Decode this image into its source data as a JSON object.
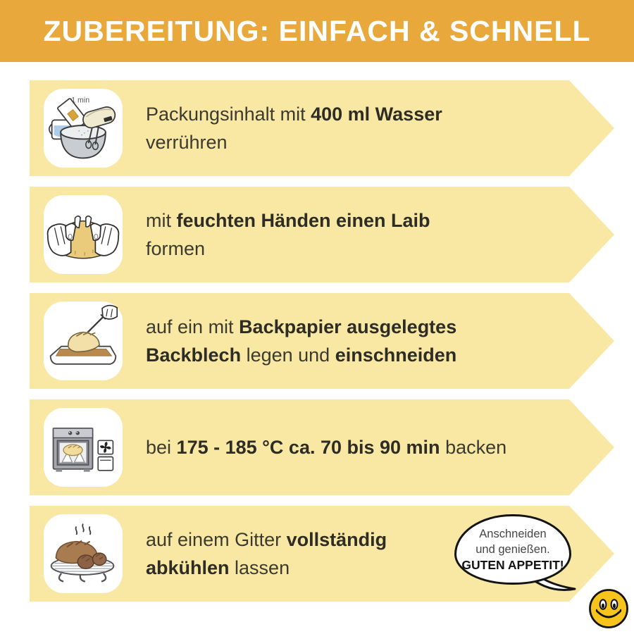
{
  "header": {
    "title": "ZUBEREITUNG: EINFACH & SCHNELL"
  },
  "colors": {
    "header_bg": "#E9A83C",
    "banner_yellow": "#F9E8A3",
    "text_dark": "#3B3A31",
    "bold_dark": "#2D2C25",
    "smiley_yellow": "#F7C41E",
    "white": "#FFFFFF"
  },
  "steps": [
    {
      "icon": "mixing-bowl-and-hand-mixer-icon",
      "icon_label": "1 min",
      "lines": [
        [
          {
            "t": "Packungsinhalt mit "
          },
          {
            "t": "400 ml Wasser",
            "b": true
          }
        ],
        [
          {
            "t": "verrühren"
          }
        ]
      ]
    },
    {
      "icon": "hands-forming-dough-loaf-icon",
      "lines": [
        [
          {
            "t": "mit "
          },
          {
            "t": "feuchten Händen einen Laib",
            "b": true
          }
        ],
        [
          {
            "t": "formen"
          }
        ]
      ]
    },
    {
      "icon": "baking-tray-with-loaf-and-knife-icon",
      "lines": [
        [
          {
            "t": "auf ein mit "
          },
          {
            "t": "Backpapier ausgelegtes",
            "b": true
          }
        ],
        [
          {
            "t": "Backblech",
            "b": true
          },
          {
            "t": " legen und "
          },
          {
            "t": "einschneiden",
            "b": true
          }
        ]
      ]
    },
    {
      "icon": "oven-with-bread-icon",
      "lines": [
        [
          {
            "t": "bei "
          },
          {
            "t": "175 - 185 °C ca. 70 bis 90 min",
            "b": true
          },
          {
            "t": " backen"
          }
        ]
      ]
    },
    {
      "icon": "bread-cooling-rack-icon",
      "lines": [
        [
          {
            "t": "auf einem Gitter "
          },
          {
            "t": "vollständig",
            "b": true
          }
        ],
        [
          {
            "t": "abkühlen",
            "b": true
          },
          {
            "t": " lassen"
          }
        ]
      ]
    }
  ],
  "speech_bubble": {
    "lines": [
      [
        {
          "t": "Anschneiden"
        }
      ],
      [
        {
          "t": "und genießen."
        }
      ],
      [
        {
          "t": "GUTEN APPETIT!",
          "b": true
        }
      ]
    ]
  }
}
